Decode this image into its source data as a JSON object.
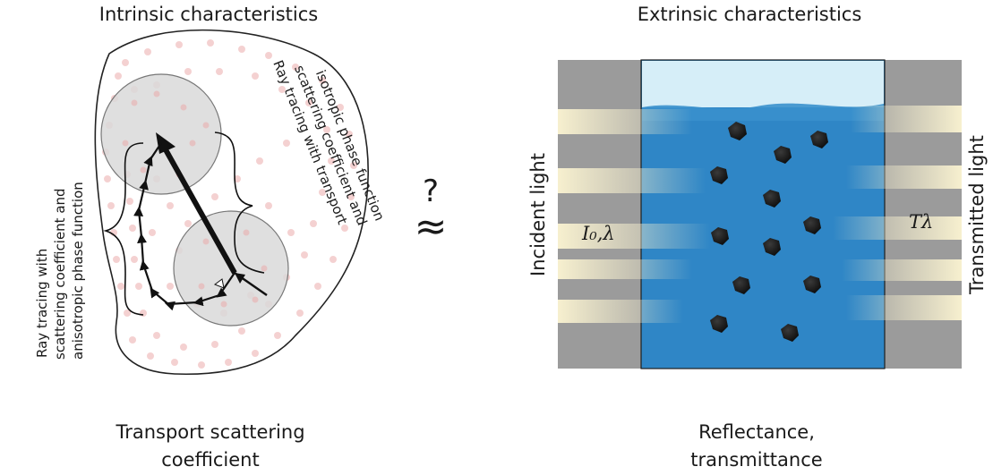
{
  "left_panel": {
    "title": "Intrinsic characteristics",
    "caption": "Transport scattering coefficient",
    "bracket_left_lines": [
      "Ray tracing with",
      "scattering coefficient and",
      "anisotropic phase function"
    ],
    "bracket_right_lines": [
      "Ray tracing with transport",
      "scattering coefficient and",
      "isotropic phase function"
    ]
  },
  "center": {
    "question_mark": "?",
    "approx_symbol": "≈"
  },
  "right_panel": {
    "title": "Extrinsic characteristics",
    "caption": "Reflectance, transmittance",
    "incident_label": "Incident light",
    "transmitted_label": "Transmitted light",
    "incident_symbol": "I₀,λ",
    "transmitted_symbol": "Tλ"
  },
  "colors": {
    "liquid_blue": "#2f86c6",
    "liquid_top": "#d6eef8",
    "side_gray": "#9b9b9b",
    "light_beam": "#f3ecc8",
    "particle_pink": "#f2c6c6",
    "circle_gray": "#d9d9d9"
  }
}
